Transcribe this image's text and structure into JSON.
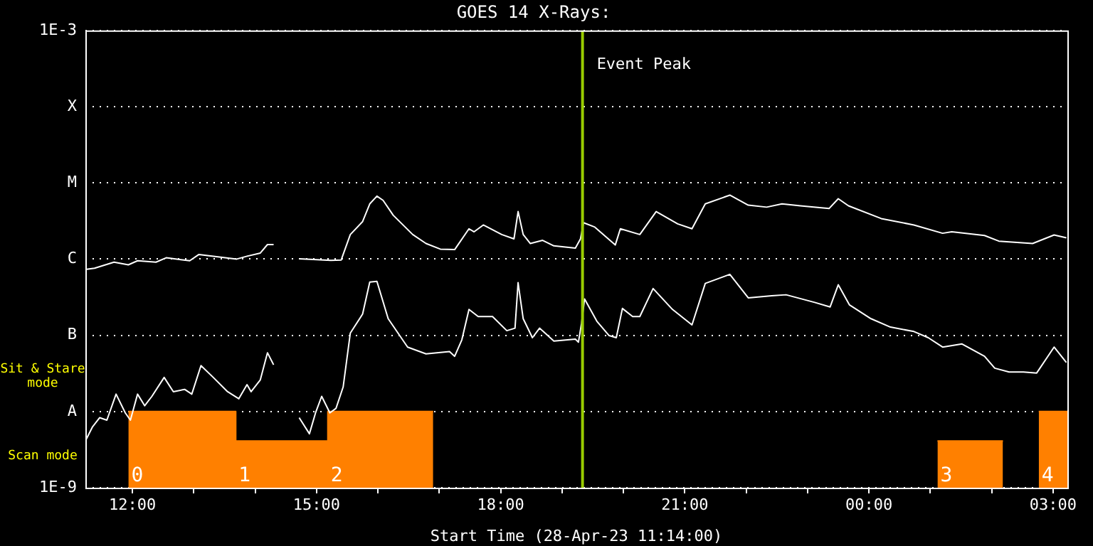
{
  "chart_data": {
    "type": "line",
    "title": "GOES 14 X-Rays:",
    "xlabel": "Start Time (28-Apr-23 11:14:00)",
    "xlim": [
      "--04-28T11:14",
      "--04-29T03:14"
    ],
    "xticks": [
      {
        "value": "--04-28T12:00",
        "label": "12:00"
      },
      {
        "value": "--04-28T13:00",
        "label": null
      },
      {
        "value": "--04-28T14:00",
        "label": null
      },
      {
        "value": "--04-28T15:00",
        "label": "15:00"
      },
      {
        "value": "--04-28T16:00",
        "label": null
      },
      {
        "value": "--04-28T17:00",
        "label": null
      },
      {
        "value": "--04-28T18:00",
        "label": "18:00"
      },
      {
        "value": "--04-28T19:00",
        "label": null
      },
      {
        "value": "--04-28T20:00",
        "label": null
      },
      {
        "value": "--04-28T21:00",
        "label": "21:00"
      },
      {
        "value": "--04-28T22:00",
        "label": null
      },
      {
        "value": "--04-28T23:00",
        "label": null
      },
      {
        "value": "--04-29T00:00",
        "label": "00:00"
      },
      {
        "value": "--04-29T01:00",
        "label": null
      },
      {
        "value": "--04-29T02:00",
        "label": null
      },
      {
        "value": "--04-29T03:00",
        "label": "03:00"
      }
    ],
    "ylim": [
      1e-09,
      0.001
    ],
    "yticks": [
      {
        "value": 1e-09,
        "label": "1E-9"
      },
      {
        "value": 1e-08,
        "label": "A"
      },
      {
        "value": 1e-07,
        "label": "B"
      },
      {
        "value": 1e-06,
        "label": "C"
      },
      {
        "value": 1e-05,
        "label": "M"
      },
      {
        "value": 0.0001,
        "label": "X"
      },
      {
        "value": 0.001,
        "label": "1E-3"
      }
    ],
    "log": true,
    "grid": "y",
    "legend": false,
    "marker": "none",
    "line_style": "solid",
    "series": [
      {
        "color": "#ffffff",
        "x": [
          "--04-28T11:14",
          "--04-28T11:23",
          "--04-28T11:42",
          "--04-28T11:56",
          "--04-28T12:05",
          "--04-28T12:23",
          "--04-28T12:33",
          "--04-28T12:56",
          "--04-28T13:05",
          "--04-28T13:42",
          "--04-28T13:52",
          "--04-28T14:05",
          "--04-28T14:12",
          "--04-28T14:18",
          "--04-28T14:30",
          "--04-28T14:43",
          "--04-28T15:14",
          "--04-28T15:24",
          "--04-28T15:33",
          "--04-28T15:45",
          "--04-28T15:52",
          "--04-28T15:59",
          "--04-28T16:05",
          "--04-28T16:15",
          "--04-28T16:34",
          "--04-28T16:47",
          "--04-28T17:01",
          "--04-28T17:15",
          "--04-28T17:29",
          "--04-28T17:34",
          "--04-28T17:43",
          "--04-28T18:01",
          "--04-28T18:13",
          "--04-28T18:17",
          "--04-28T18:22",
          "--04-28T18:29",
          "--04-28T18:41",
          "--04-28T18:52",
          "--04-28T19:13",
          "--04-28T19:18",
          "--04-28T19:21",
          "--04-28T19:32",
          "--04-28T19:52",
          "--04-28T19:57",
          "--04-28T20:16",
          "--04-28T20:32",
          "--04-28T20:53",
          "--04-28T21:07",
          "--04-28T21:20",
          "--04-28T21:44",
          "--04-28T22:02",
          "--04-28T22:20",
          "--04-28T22:35",
          "--04-28T22:53",
          "--04-28T23:21",
          "--04-28T23:30",
          "--04-28T23:40",
          "--04-29T00:12",
          "--04-29T00:44",
          "--04-29T01:12",
          "--04-29T01:21",
          "--04-29T01:53",
          "--04-29T02:07",
          "--04-29T02:40",
          "--04-29T03:01",
          "--04-29T03:13"
        ],
        "values": [
          7.3e-07,
          7.6e-07,
          9.1e-07,
          8.4e-07,
          9.5e-07,
          9.1e-07,
          1.04e-06,
          9.5e-07,
          1.15e-06,
          1e-06,
          1.09e-06,
          1.2e-06,
          1.55e-06,
          1.55e-06,
          null,
          1.01e-06,
          9.6e-07,
          9.7e-07,
          2.1e-06,
          3.1e-06,
          5.3e-06,
          6.7e-06,
          5.9e-06,
          3.75e-06,
          2.1e-06,
          1.6e-06,
          1.35e-06,
          1.33e-06,
          2.5e-06,
          2.28e-06,
          2.8e-06,
          2.1e-06,
          1.84e-06,
          4.2e-06,
          2.1e-06,
          1.6e-06,
          1.76e-06,
          1.49e-06,
          1.39e-06,
          1.84e-06,
          3e-06,
          2.63e-06,
          1.53e-06,
          2.5e-06,
          2.1e-06,
          4.2e-06,
          2.9e-06,
          2.5e-06,
          5.3e-06,
          6.9e-06,
          5.1e-06,
          4.8e-06,
          5.3e-06,
          5e-06,
          4.6e-06,
          6.2e-06,
          5e-06,
          3.4e-06,
          2.8e-06,
          2.18e-06,
          2.28e-06,
          2.04e-06,
          1.72e-06,
          1.6e-06,
          2.07e-06,
          1.9e-06
        ]
      },
      {
        "color": "#ffffff",
        "x": [
          "--04-28T11:14",
          "--04-28T11:21",
          "--04-28T11:28",
          "--04-28T11:35",
          "--04-28T11:44",
          "--04-28T11:53",
          "--04-28T11:58",
          "--04-28T12:05",
          "--04-28T12:12",
          "--04-28T12:19",
          "--04-28T12:31",
          "--04-28T12:40",
          "--04-28T12:51",
          "--04-28T12:58",
          "--04-28T13:07",
          "--04-28T13:19",
          "--04-28T13:33",
          "--04-28T13:44",
          "--04-28T13:52",
          "--04-28T13:56",
          "--04-28T14:05",
          "--04-28T14:12",
          "--04-28T14:18",
          "--04-28T14:30",
          "--04-28T14:43",
          "--04-28T14:53",
          "--04-28T14:59",
          "--04-28T15:05",
          "--04-28T15:13",
          "--04-28T15:19",
          "--04-28T15:26",
          "--04-28T15:33",
          "--04-28T15:45",
          "--04-28T15:52",
          "--04-28T15:59",
          "--04-28T16:10",
          "--04-28T16:29",
          "--04-28T16:47",
          "--04-28T17:10",
          "--04-28T17:15",
          "--04-28T17:22",
          "--04-28T17:29",
          "--04-28T17:38",
          "--04-28T17:52",
          "--04-28T18:06",
          "--04-28T18:14",
          "--04-28T18:17",
          "--04-28T18:22",
          "--04-28T18:31",
          "--04-28T18:38",
          "--04-28T18:52",
          "--04-28T19:13",
          "--04-28T19:16",
          "--04-28T19:19",
          "--04-28T19:22",
          "--04-28T19:34",
          "--04-28T19:46",
          "--04-28T19:53",
          "--04-28T19:59",
          "--04-28T20:09",
          "--04-28T20:16",
          "--04-28T20:29",
          "--04-28T20:48",
          "--04-28T21:07",
          "--04-28T21:20",
          "--04-28T21:44",
          "--04-28T22:02",
          "--04-28T22:25",
          "--04-28T22:39",
          "--04-28T23:07",
          "--04-28T23:22",
          "--04-28T23:30",
          "--04-28T23:41",
          "--04-29T00:02",
          "--04-29T00:21",
          "--04-29T00:44",
          "--04-29T00:58",
          "--04-29T01:12",
          "--04-29T01:31",
          "--04-29T01:53",
          "--04-29T02:03",
          "--04-29T02:17",
          "--04-29T02:31",
          "--04-29T02:44",
          "--04-29T03:01",
          "--04-29T03:13"
        ],
        "values": [
          4.1e-09,
          6.3e-09,
          8.3e-09,
          7.7e-09,
          1.69e-08,
          9.6e-09,
          7.7e-09,
          1.69e-08,
          1.19e-08,
          1.58e-08,
          2.8e-08,
          1.82e-08,
          1.95e-08,
          1.69e-08,
          4e-08,
          2.8e-08,
          1.82e-08,
          1.47e-08,
          2.25e-08,
          1.82e-08,
          2.6e-08,
          5.9e-08,
          4.1e-08,
          null,
          8.3e-09,
          5.1e-09,
          9.6e-09,
          1.58e-08,
          9.6e-09,
          1.1e-08,
          2.1e-08,
          1.07e-07,
          1.9e-07,
          5e-07,
          5.1e-07,
          1.65e-07,
          7e-08,
          5.7e-08,
          6.1e-08,
          5.3e-08,
          8.7e-08,
          2.18e-07,
          1.76e-07,
          1.76e-07,
          1.15e-07,
          1.24e-07,
          4.9e-07,
          1.65e-07,
          9.3e-08,
          1.24e-07,
          8.4e-08,
          8.9e-08,
          8.1e-08,
          1.43e-07,
          3e-07,
          1.53e-07,
          9.9e-08,
          9.3e-08,
          2.25e-07,
          1.76e-07,
          1.76e-07,
          4.1e-07,
          2.18e-07,
          1.37e-07,
          4.8e-07,
          6.3e-07,
          3.1e-07,
          3.3e-07,
          3.4e-07,
          2.7e-07,
          2.35e-07,
          4.6e-07,
          2.5e-07,
          1.65e-07,
          1.28e-07,
          1.12e-07,
          9.3e-08,
          7e-08,
          7.7e-08,
          5.3e-08,
          3.7e-08,
          3.3e-08,
          3.3e-08,
          3.2e-08,
          7e-08,
          4.4e-08
        ]
      },
      {
        "type": "area",
        "color": "#ff8000",
        "x": [
          "--04-28T11:56",
          "--04-28T13:41",
          "--04-28T13:41",
          "--04-28T15:11",
          "--04-28T15:11",
          "--04-28T16:54",
          "--04-28T20:00",
          "--04-29T01:07",
          "--04-29T02:11",
          "--04-29T02:30",
          "--04-29T02:46",
          "--04-29T03:14"
        ],
        "values": [
          1e-08,
          1e-08,
          4.1e-09,
          4.1e-09,
          1e-08,
          1e-08,
          null,
          4.1e-09,
          4.1e-09,
          null,
          1e-08,
          1e-08
        ]
      }
    ],
    "ref_lines": [
      {
        "axis": "x",
        "value": "--04-28T19:20",
        "label": "Event Peak",
        "color": "#99cc00"
      }
    ],
    "annotations": [
      "Sit & Stare mode",
      "Scan mode",
      "0",
      "1",
      "2",
      "3",
      "4"
    ]
  }
}
